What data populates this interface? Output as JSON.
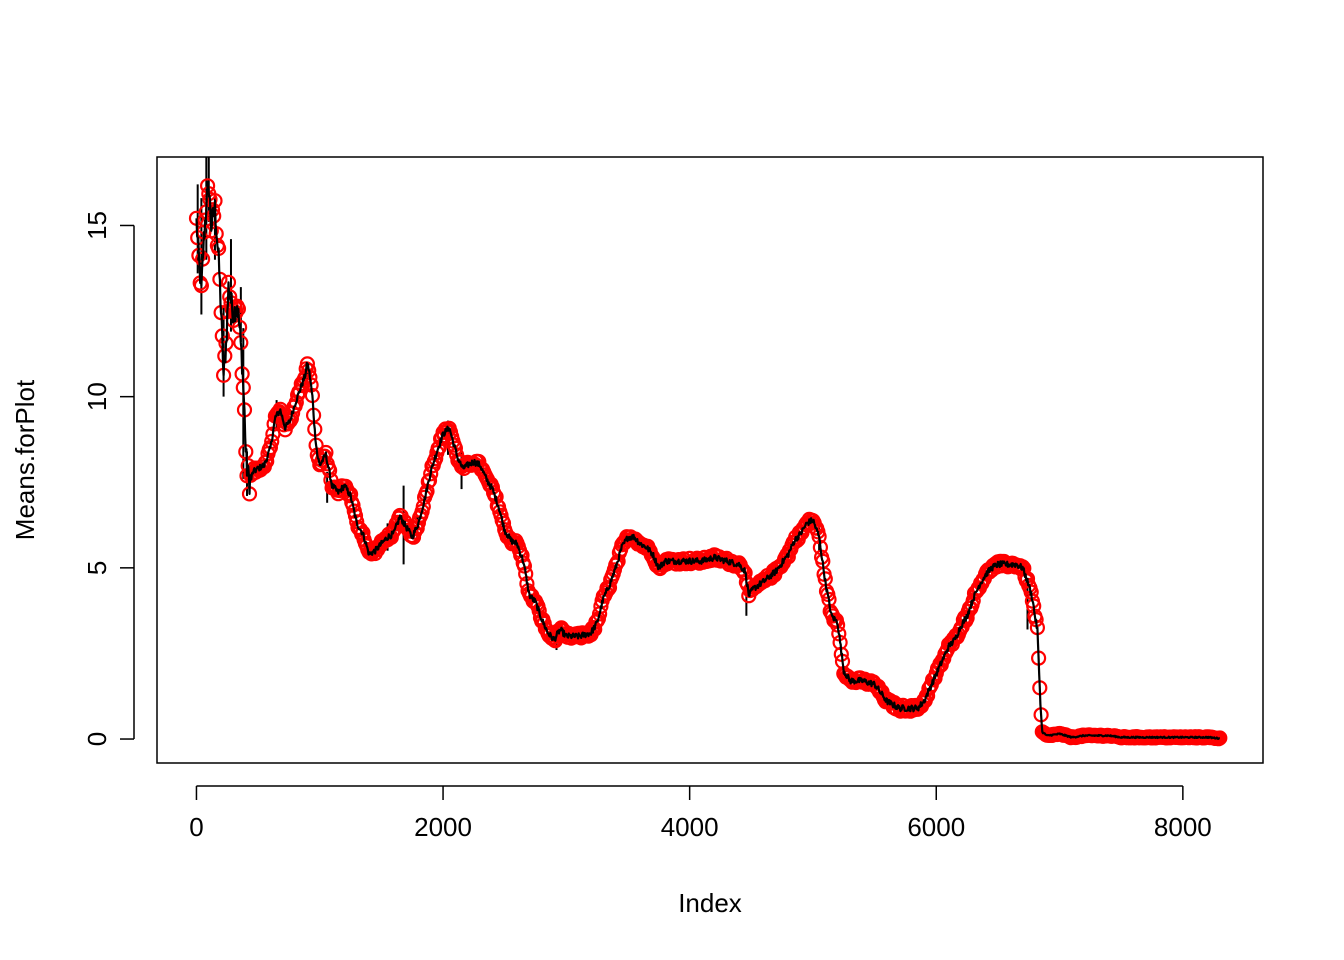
{
  "chart_data": {
    "type": "scatter",
    "title": "",
    "xlabel": "Index",
    "ylabel": "Means.forPlot",
    "xlim": [
      -320,
      8650
    ],
    "ylim": [
      -0.7,
      17
    ],
    "xticks": [
      0,
      2000,
      4000,
      6000,
      8000
    ],
    "yticks": [
      0,
      5,
      10,
      15
    ],
    "grid": false,
    "legend": "none",
    "colors": {
      "points": "#ff0000",
      "line": "#000000",
      "errorbars": "#000000"
    },
    "anchors": [
      [
        0,
        15.1
      ],
      [
        20,
        14.0
      ],
      [
        40,
        13.1
      ],
      [
        60,
        14.6
      ],
      [
        80,
        15.6
      ],
      [
        100,
        16.2
      ],
      [
        120,
        15.0
      ],
      [
        150,
        15.5
      ],
      [
        180,
        14.0
      ],
      [
        200,
        12.5
      ],
      [
        220,
        10.6
      ],
      [
        240,
        11.5
      ],
      [
        260,
        13.2
      ],
      [
        280,
        12.8
      ],
      [
        300,
        12.4
      ],
      [
        330,
        12.7
      ],
      [
        350,
        12.0
      ],
      [
        370,
        11.0
      ],
      [
        380,
        10.3
      ],
      [
        390,
        9.5
      ],
      [
        400,
        8.4
      ],
      [
        410,
        7.9
      ],
      [
        430,
        7.5
      ],
      [
        460,
        7.8
      ],
      [
        500,
        7.9
      ],
      [
        550,
        8.0
      ],
      [
        600,
        8.5
      ],
      [
        640,
        9.4
      ],
      [
        680,
        9.6
      ],
      [
        720,
        9.1
      ],
      [
        760,
        9.3
      ],
      [
        800,
        9.8
      ],
      [
        840,
        10.2
      ],
      [
        880,
        10.6
      ],
      [
        900,
        11.0
      ],
      [
        920,
        10.6
      ],
      [
        940,
        10.0
      ],
      [
        960,
        9.0
      ],
      [
        980,
        8.3
      ],
      [
        1000,
        8.0
      ],
      [
        1050,
        8.3
      ],
      [
        1100,
        7.4
      ],
      [
        1150,
        7.2
      ],
      [
        1200,
        7.4
      ],
      [
        1250,
        7.1
      ],
      [
        1300,
        6.3
      ],
      [
        1350,
        6.0
      ],
      [
        1400,
        5.4
      ],
      [
        1450,
        5.5
      ],
      [
        1500,
        5.7
      ],
      [
        1550,
        5.9
      ],
      [
        1600,
        6.0
      ],
      [
        1650,
        6.5
      ],
      [
        1700,
        6.2
      ],
      [
        1750,
        5.9
      ],
      [
        1800,
        6.3
      ],
      [
        1850,
        7.0
      ],
      [
        1900,
        7.8
      ],
      [
        1950,
        8.4
      ],
      [
        2000,
        8.9
      ],
      [
        2050,
        9.1
      ],
      [
        2080,
        8.7
      ],
      [
        2120,
        8.2
      ],
      [
        2160,
        7.9
      ],
      [
        2200,
        8.0
      ],
      [
        2250,
        8.1
      ],
      [
        2300,
        8.0
      ],
      [
        2350,
        7.6
      ],
      [
        2400,
        7.3
      ],
      [
        2450,
        6.8
      ],
      [
        2500,
        6.1
      ],
      [
        2550,
        5.8
      ],
      [
        2600,
        5.7
      ],
      [
        2650,
        5.2
      ],
      [
        2700,
        4.2
      ],
      [
        2750,
        4.0
      ],
      [
        2800,
        3.5
      ],
      [
        2850,
        3.1
      ],
      [
        2900,
        2.9
      ],
      [
        2950,
        3.2
      ],
      [
        3000,
        3.0
      ],
      [
        3100,
        3.0
      ],
      [
        3200,
        3.1
      ],
      [
        3250,
        3.4
      ],
      [
        3300,
        4.1
      ],
      [
        3350,
        4.5
      ],
      [
        3400,
        5.0
      ],
      [
        3450,
        5.6
      ],
      [
        3500,
        5.9
      ],
      [
        3550,
        5.9
      ],
      [
        3600,
        5.7
      ],
      [
        3650,
        5.6
      ],
      [
        3700,
        5.4
      ],
      [
        3750,
        5.0
      ],
      [
        3800,
        5.2
      ],
      [
        3900,
        5.2
      ],
      [
        4000,
        5.2
      ],
      [
        4100,
        5.2
      ],
      [
        4200,
        5.3
      ],
      [
        4300,
        5.2
      ],
      [
        4400,
        5.1
      ],
      [
        4450,
        4.9
      ],
      [
        4480,
        4.2
      ],
      [
        4520,
        4.4
      ],
      [
        4600,
        4.6
      ],
      [
        4700,
        4.9
      ],
      [
        4800,
        5.4
      ],
      [
        4850,
        5.8
      ],
      [
        4900,
        6.0
      ],
      [
        4950,
        6.3
      ],
      [
        5000,
        6.4
      ],
      [
        5050,
        5.9
      ],
      [
        5100,
        4.6
      ],
      [
        5150,
        3.6
      ],
      [
        5200,
        3.4
      ],
      [
        5250,
        2.0
      ],
      [
        5300,
        1.7
      ],
      [
        5400,
        1.7
      ],
      [
        5500,
        1.6
      ],
      [
        5600,
        1.1
      ],
      [
        5700,
        0.9
      ],
      [
        5800,
        0.9
      ],
      [
        5850,
        0.9
      ],
      [
        5900,
        1.1
      ],
      [
        5950,
        1.5
      ],
      [
        6000,
        1.9
      ],
      [
        6050,
        2.3
      ],
      [
        6100,
        2.7
      ],
      [
        6150,
        2.9
      ],
      [
        6200,
        3.3
      ],
      [
        6250,
        3.6
      ],
      [
        6300,
        4.1
      ],
      [
        6350,
        4.5
      ],
      [
        6400,
        4.8
      ],
      [
        6450,
        5.0
      ],
      [
        6500,
        5.1
      ],
      [
        6550,
        5.1
      ],
      [
        6600,
        5.1
      ],
      [
        6650,
        5.1
      ],
      [
        6700,
        5.0
      ],
      [
        6750,
        4.5
      ],
      [
        6780,
        4.1
      ],
      [
        6800,
        3.6
      ],
      [
        6820,
        3.2
      ],
      [
        6830,
        2.3
      ],
      [
        6840,
        1.5
      ],
      [
        6850,
        0.7
      ],
      [
        6860,
        0.2
      ],
      [
        6900,
        0.1
      ],
      [
        7000,
        0.15
      ],
      [
        7100,
        0.05
      ],
      [
        7200,
        0.1
      ],
      [
        7300,
        0.1
      ],
      [
        7400,
        0.1
      ],
      [
        7500,
        0.05
      ],
      [
        7600,
        0.05
      ],
      [
        7700,
        0.05
      ],
      [
        7800,
        0.05
      ],
      [
        7900,
        0.05
      ],
      [
        8000,
        0.05
      ],
      [
        8100,
        0.05
      ],
      [
        8200,
        0.05
      ],
      [
        8300,
        0.02
      ]
    ],
    "errorbars": [
      [
        10,
        13.6,
        16.2
      ],
      [
        40,
        12.4,
        15.8
      ],
      [
        80,
        14.0,
        17.0
      ],
      [
        100,
        15.1,
        17.0
      ],
      [
        150,
        14.0,
        16.0
      ],
      [
        220,
        10.0,
        12.6
      ],
      [
        280,
        11.9,
        14.6
      ],
      [
        360,
        11.6,
        13.2
      ],
      [
        380,
        7.6,
        12.0
      ],
      [
        410,
        7.1,
        8.4
      ],
      [
        650,
        9.0,
        9.9
      ],
      [
        900,
        10.3,
        11.0
      ],
      [
        1060,
        6.9,
        7.8
      ],
      [
        1550,
        5.5,
        6.3
      ],
      [
        1680,
        5.1,
        7.4
      ],
      [
        1790,
        5.8,
        6.5
      ],
      [
        2040,
        8.3,
        9.3
      ],
      [
        2150,
        7.3,
        8.4
      ],
      [
        2920,
        2.6,
        3.3
      ],
      [
        4460,
        3.6,
        4.6
      ],
      [
        5050,
        5.5,
        6.4
      ],
      [
        6740,
        3.2,
        4.6
      ]
    ]
  }
}
